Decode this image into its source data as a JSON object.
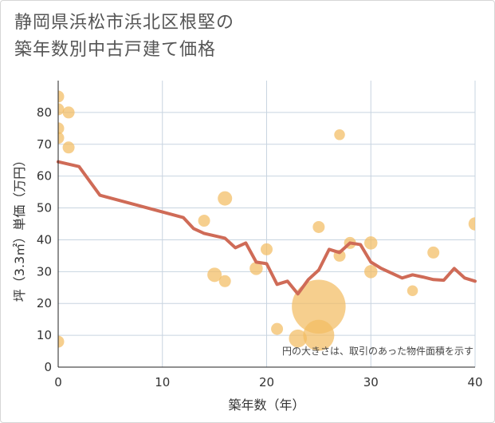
{
  "chart_data": {
    "type": "scatter",
    "title_lines": [
      "静岡県浜松市浜北区根堅の",
      "築年数別中古戸建て価格"
    ],
    "xlabel": "築年数（年）",
    "ylabel": "坪（3.3㎡）単価（万円）",
    "xlim": [
      0,
      40
    ],
    "ylim": [
      0,
      90
    ],
    "xticks": [
      0,
      10,
      20,
      30,
      40
    ],
    "yticks": [
      0,
      10,
      20,
      30,
      40,
      50,
      60,
      70,
      80
    ],
    "grid": true,
    "note": "円の大きさは、取引のあった物件面積を示す",
    "colors": {
      "bubble": "#f2bd62",
      "line": "#cf6b57",
      "grid": "#c8d4e0"
    },
    "bubbles": [
      {
        "x": 0,
        "y": 85,
        "size": 1
      },
      {
        "x": 0,
        "y": 81,
        "size": 1
      },
      {
        "x": 0,
        "y": 75,
        "size": 1
      },
      {
        "x": 0,
        "y": 72,
        "size": 1
      },
      {
        "x": 0,
        "y": 8,
        "size": 1
      },
      {
        "x": 1,
        "y": 80,
        "size": 1
      },
      {
        "x": 1,
        "y": 69,
        "size": 1
      },
      {
        "x": 14,
        "y": 46,
        "size": 1
      },
      {
        "x": 15,
        "y": 29,
        "size": 1.2
      },
      {
        "x": 16,
        "y": 53,
        "size": 1.2
      },
      {
        "x": 16,
        "y": 27,
        "size": 1
      },
      {
        "x": 19,
        "y": 31,
        "size": 1.1
      },
      {
        "x": 20,
        "y": 37,
        "size": 1
      },
      {
        "x": 21,
        "y": 12,
        "size": 1
      },
      {
        "x": 23,
        "y": 9,
        "size": 1.5
      },
      {
        "x": 25,
        "y": 19,
        "size": 4.5
      },
      {
        "x": 25,
        "y": 10,
        "size": 2.6
      },
      {
        "x": 25,
        "y": 44,
        "size": 1
      },
      {
        "x": 27,
        "y": 73,
        "size": 0.9
      },
      {
        "x": 27,
        "y": 35,
        "size": 1
      },
      {
        "x": 28,
        "y": 39,
        "size": 1
      },
      {
        "x": 30,
        "y": 39,
        "size": 1.1
      },
      {
        "x": 30,
        "y": 30,
        "size": 1.1
      },
      {
        "x": 34,
        "y": 24,
        "size": 0.9
      },
      {
        "x": 36,
        "y": 36,
        "size": 1
      },
      {
        "x": 40,
        "y": 45,
        "size": 1.1
      }
    ],
    "trend": {
      "x": [
        0,
        2,
        4,
        12,
        13,
        14,
        16,
        17,
        18,
        19,
        20,
        21,
        22,
        23,
        24,
        25,
        26,
        27,
        28,
        29,
        30,
        31,
        32,
        33,
        34,
        35,
        36,
        37,
        38,
        39,
        40
      ],
      "y": [
        64.5,
        63,
        54,
        47,
        43.5,
        42,
        40.5,
        37.5,
        39,
        33,
        32.5,
        26,
        27,
        23,
        27.5,
        30.5,
        37,
        36,
        39,
        38.5,
        33,
        31,
        29.5,
        28,
        29,
        28.3,
        27.5,
        27.3,
        31,
        28,
        27
      ]
    }
  }
}
